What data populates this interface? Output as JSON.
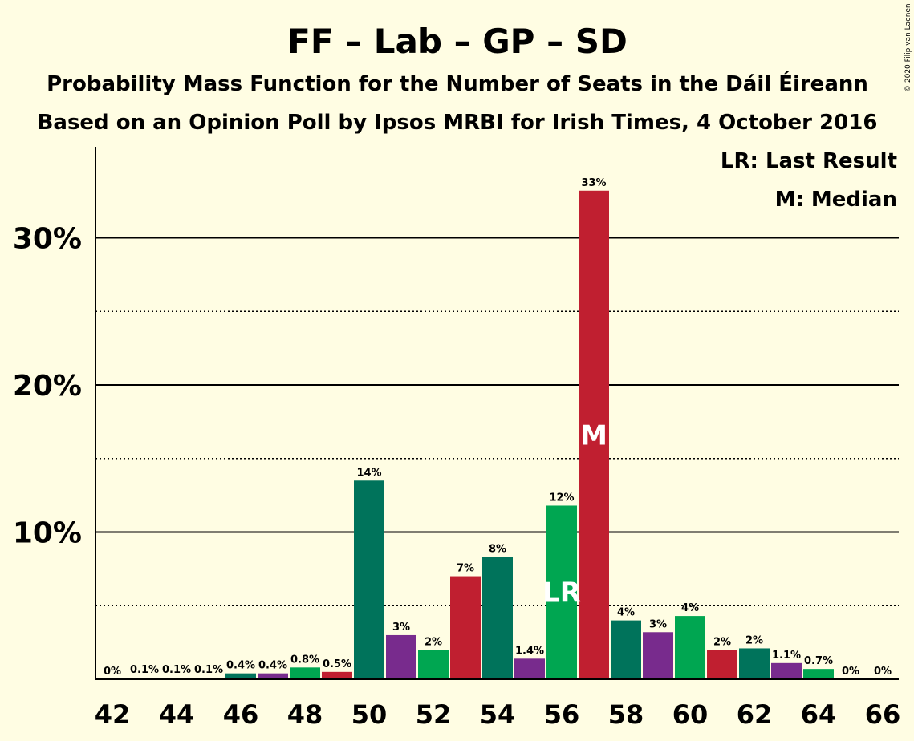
{
  "chart_data": {
    "type": "bar",
    "title": "FF – Lab – GP – SD",
    "subtitle": "Probability Mass Function for the Number of Seats in the Dáil Éireann",
    "subtitle2": "Based on an Opinion Poll by Ipsos MRBI for Irish Times, 4 October 2016",
    "legend_lr": "LR: Last Result",
    "legend_median": "M: Median",
    "copyright": "© 2020 Filip van Laenen",
    "ylim": [
      0,
      36
    ],
    "ytick_labels": [
      {
        "value": 10,
        "label": "10%"
      },
      {
        "value": 20,
        "label": "20%"
      },
      {
        "value": 30,
        "label": "30%"
      }
    ],
    "dotted_gridlines": [
      5,
      15,
      25
    ],
    "xtick_labels": [
      "42",
      "44",
      "46",
      "48",
      "50",
      "52",
      "54",
      "56",
      "58",
      "60",
      "62",
      "64",
      "66"
    ],
    "categories": [
      42,
      43,
      44,
      45,
      46,
      47,
      48,
      49,
      50,
      51,
      52,
      53,
      54,
      55,
      56,
      57,
      58,
      59,
      60,
      61,
      62,
      63,
      64,
      65,
      66
    ],
    "values": [
      0,
      0.1,
      0.1,
      0.1,
      0.4,
      0.4,
      0.8,
      0.5,
      13.5,
      3,
      2,
      7,
      8.3,
      1.4,
      11.8,
      33.2,
      4,
      3.2,
      4.3,
      2,
      2.1,
      1.1,
      0.7,
      0,
      0
    ],
    "value_labels": [
      "0%",
      "0.1%",
      "0.1%",
      "0.1%",
      "0.4%",
      "0.4%",
      "0.8%",
      "0.5%",
      "14%",
      "3%",
      "2%",
      "7%",
      "8%",
      "1.4%",
      "12%",
      "33%",
      "4%",
      "3%",
      "4%",
      "2%",
      "2%",
      "1.1%",
      "0.7%",
      "0%",
      "0%"
    ],
    "bar_colors": [
      "#00735B",
      "#782B8D",
      "#00A651",
      "#C01F30",
      "#00735B",
      "#782B8D",
      "#00A651",
      "#C01F30",
      "#00735B",
      "#782B8D",
      "#00A651",
      "#C01F30",
      "#00735B",
      "#782B8D",
      "#00A651",
      "#C01F30",
      "#00735B",
      "#782B8D",
      "#00A651",
      "#C01F30",
      "#00735B",
      "#782B8D",
      "#00A651",
      "#C01F30",
      "#00735B"
    ],
    "last_result": {
      "category": 56,
      "label": "LR"
    },
    "median": {
      "category": 57,
      "label": "M"
    },
    "background": "#FFFDE3"
  }
}
